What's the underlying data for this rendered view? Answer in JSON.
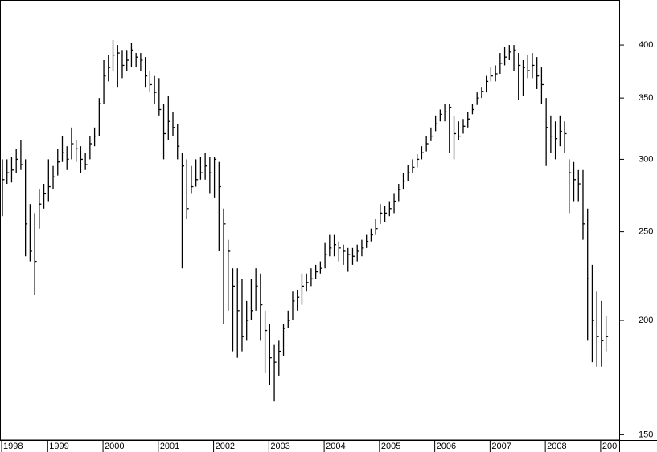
{
  "chart_data": {
    "type": "ohlc",
    "color": "#000000",
    "log": true,
    "categories": [
      "1998",
      null,
      null,
      null,
      null,
      null,
      null,
      null,
      null,
      null,
      "1999",
      null,
      null,
      null,
      null,
      null,
      null,
      null,
      null,
      null,
      null,
      null,
      "2000",
      null,
      null,
      null,
      null,
      null,
      null,
      null,
      null,
      null,
      null,
      null,
      "2001",
      null,
      null,
      null,
      null,
      null,
      null,
      null,
      null,
      null,
      null,
      null,
      "2002",
      null,
      null,
      null,
      null,
      null,
      null,
      null,
      null,
      null,
      null,
      null,
      "2003",
      null,
      null,
      null,
      null,
      null,
      null,
      null,
      null,
      null,
      null,
      null,
      "2004",
      null,
      null,
      null,
      null,
      null,
      null,
      null,
      null,
      null,
      null,
      null,
      "2005",
      null,
      null,
      null,
      null,
      null,
      null,
      null,
      null,
      null,
      null,
      null,
      "2006",
      null,
      null,
      null,
      null,
      null,
      null,
      null,
      null,
      null,
      null,
      null,
      "2007",
      null,
      null,
      null,
      null,
      null,
      null,
      null,
      null,
      null,
      null,
      null,
      "2008",
      null,
      null,
      null,
      null,
      null,
      null,
      null,
      null,
      null,
      null,
      null,
      "200",
      null
    ],
    "high": [
      300,
      300,
      302,
      308,
      315,
      300,
      268,
      262,
      278,
      282,
      300,
      295,
      308,
      318,
      310,
      325,
      315,
      310,
      305,
      318,
      325,
      350,
      385,
      390,
      405,
      400,
      395,
      395,
      402,
      392,
      392,
      388,
      375,
      370,
      368,
      345,
      352,
      338,
      328,
      305,
      300,
      295,
      300,
      302,
      305,
      302,
      302,
      298,
      265,
      245,
      228,
      228,
      222,
      210,
      222,
      228,
      225,
      205,
      198,
      188,
      190,
      198,
      205,
      215,
      216,
      225,
      225,
      228,
      230,
      232,
      243,
      248,
      248,
      244,
      242,
      240,
      240,
      242,
      245,
      248,
      252,
      258,
      268,
      267,
      270,
      275,
      282,
      290,
      296,
      300,
      304,
      310,
      318,
      325,
      335,
      340,
      345,
      345,
      335,
      330,
      332,
      338,
      345,
      355,
      360,
      370,
      378,
      380,
      392,
      398,
      400,
      400,
      392,
      385,
      390,
      392,
      388,
      378,
      350,
      335,
      330,
      335,
      330,
      300,
      298,
      292,
      292,
      265,
      230,
      215,
      210,
      202
    ],
    "low": [
      260,
      282,
      283,
      290,
      292,
      235,
      232,
      213,
      252,
      265,
      270,
      278,
      288,
      298,
      292,
      300,
      298,
      290,
      292,
      300,
      310,
      318,
      345,
      365,
      375,
      360,
      368,
      375,
      378,
      378,
      375,
      360,
      355,
      345,
      335,
      300,
      315,
      318,
      300,
      228,
      258,
      275,
      280,
      285,
      285,
      275,
      272,
      238,
      198,
      205,
      185,
      182,
      185,
      190,
      200,
      205,
      190,
      175,
      170,
      163,
      174,
      183,
      196,
      200,
      205,
      208,
      215,
      218,
      222,
      225,
      228,
      235,
      235,
      232,
      230,
      226,
      230,
      232,
      235,
      240,
      244,
      248,
      255,
      256,
      260,
      262,
      270,
      278,
      284,
      290,
      294,
      300,
      306,
      314,
      322,
      330,
      330,
      305,
      300,
      315,
      320,
      325,
      336,
      344,
      350,
      355,
      365,
      365,
      372,
      380,
      385,
      375,
      348,
      352,
      368,
      368,
      358,
      345,
      295,
      305,
      300,
      310,
      305,
      262,
      270,
      270,
      245,
      190,
      180,
      178,
      178,
      185
    ],
    "close": [
      285,
      290,
      292,
      300,
      296,
      255,
      238,
      232,
      268,
      275,
      280,
      287,
      298,
      305,
      300,
      312,
      308,
      300,
      296,
      312,
      318,
      345,
      370,
      378,
      390,
      392,
      380,
      385,
      395,
      388,
      385,
      370,
      362,
      355,
      340,
      320,
      330,
      325,
      310,
      295,
      265,
      280,
      285,
      290,
      295,
      290,
      300,
      280,
      255,
      238,
      218,
      205,
      192,
      200,
      205,
      218,
      208,
      195,
      182,
      180,
      185,
      196,
      200,
      210,
      212,
      218,
      220,
      222,
      226,
      228,
      236,
      240,
      242,
      240,
      238,
      236,
      235,
      238,
      240,
      244,
      248,
      252,
      262,
      262,
      265,
      270,
      278,
      284,
      290,
      294,
      300,
      305,
      312,
      318,
      328,
      336,
      338,
      342,
      320,
      318,
      326,
      332,
      340,
      350,
      356,
      365,
      370,
      372,
      382,
      388,
      393,
      395,
      380,
      378,
      375,
      380,
      370,
      362,
      325,
      318,
      316,
      322,
      320,
      290,
      285,
      282,
      255,
      222,
      200,
      192,
      190,
      192
    ],
    "ylim": [
      148,
      448
    ],
    "yticks": [
      150,
      200,
      250,
      300,
      350,
      400
    ]
  }
}
